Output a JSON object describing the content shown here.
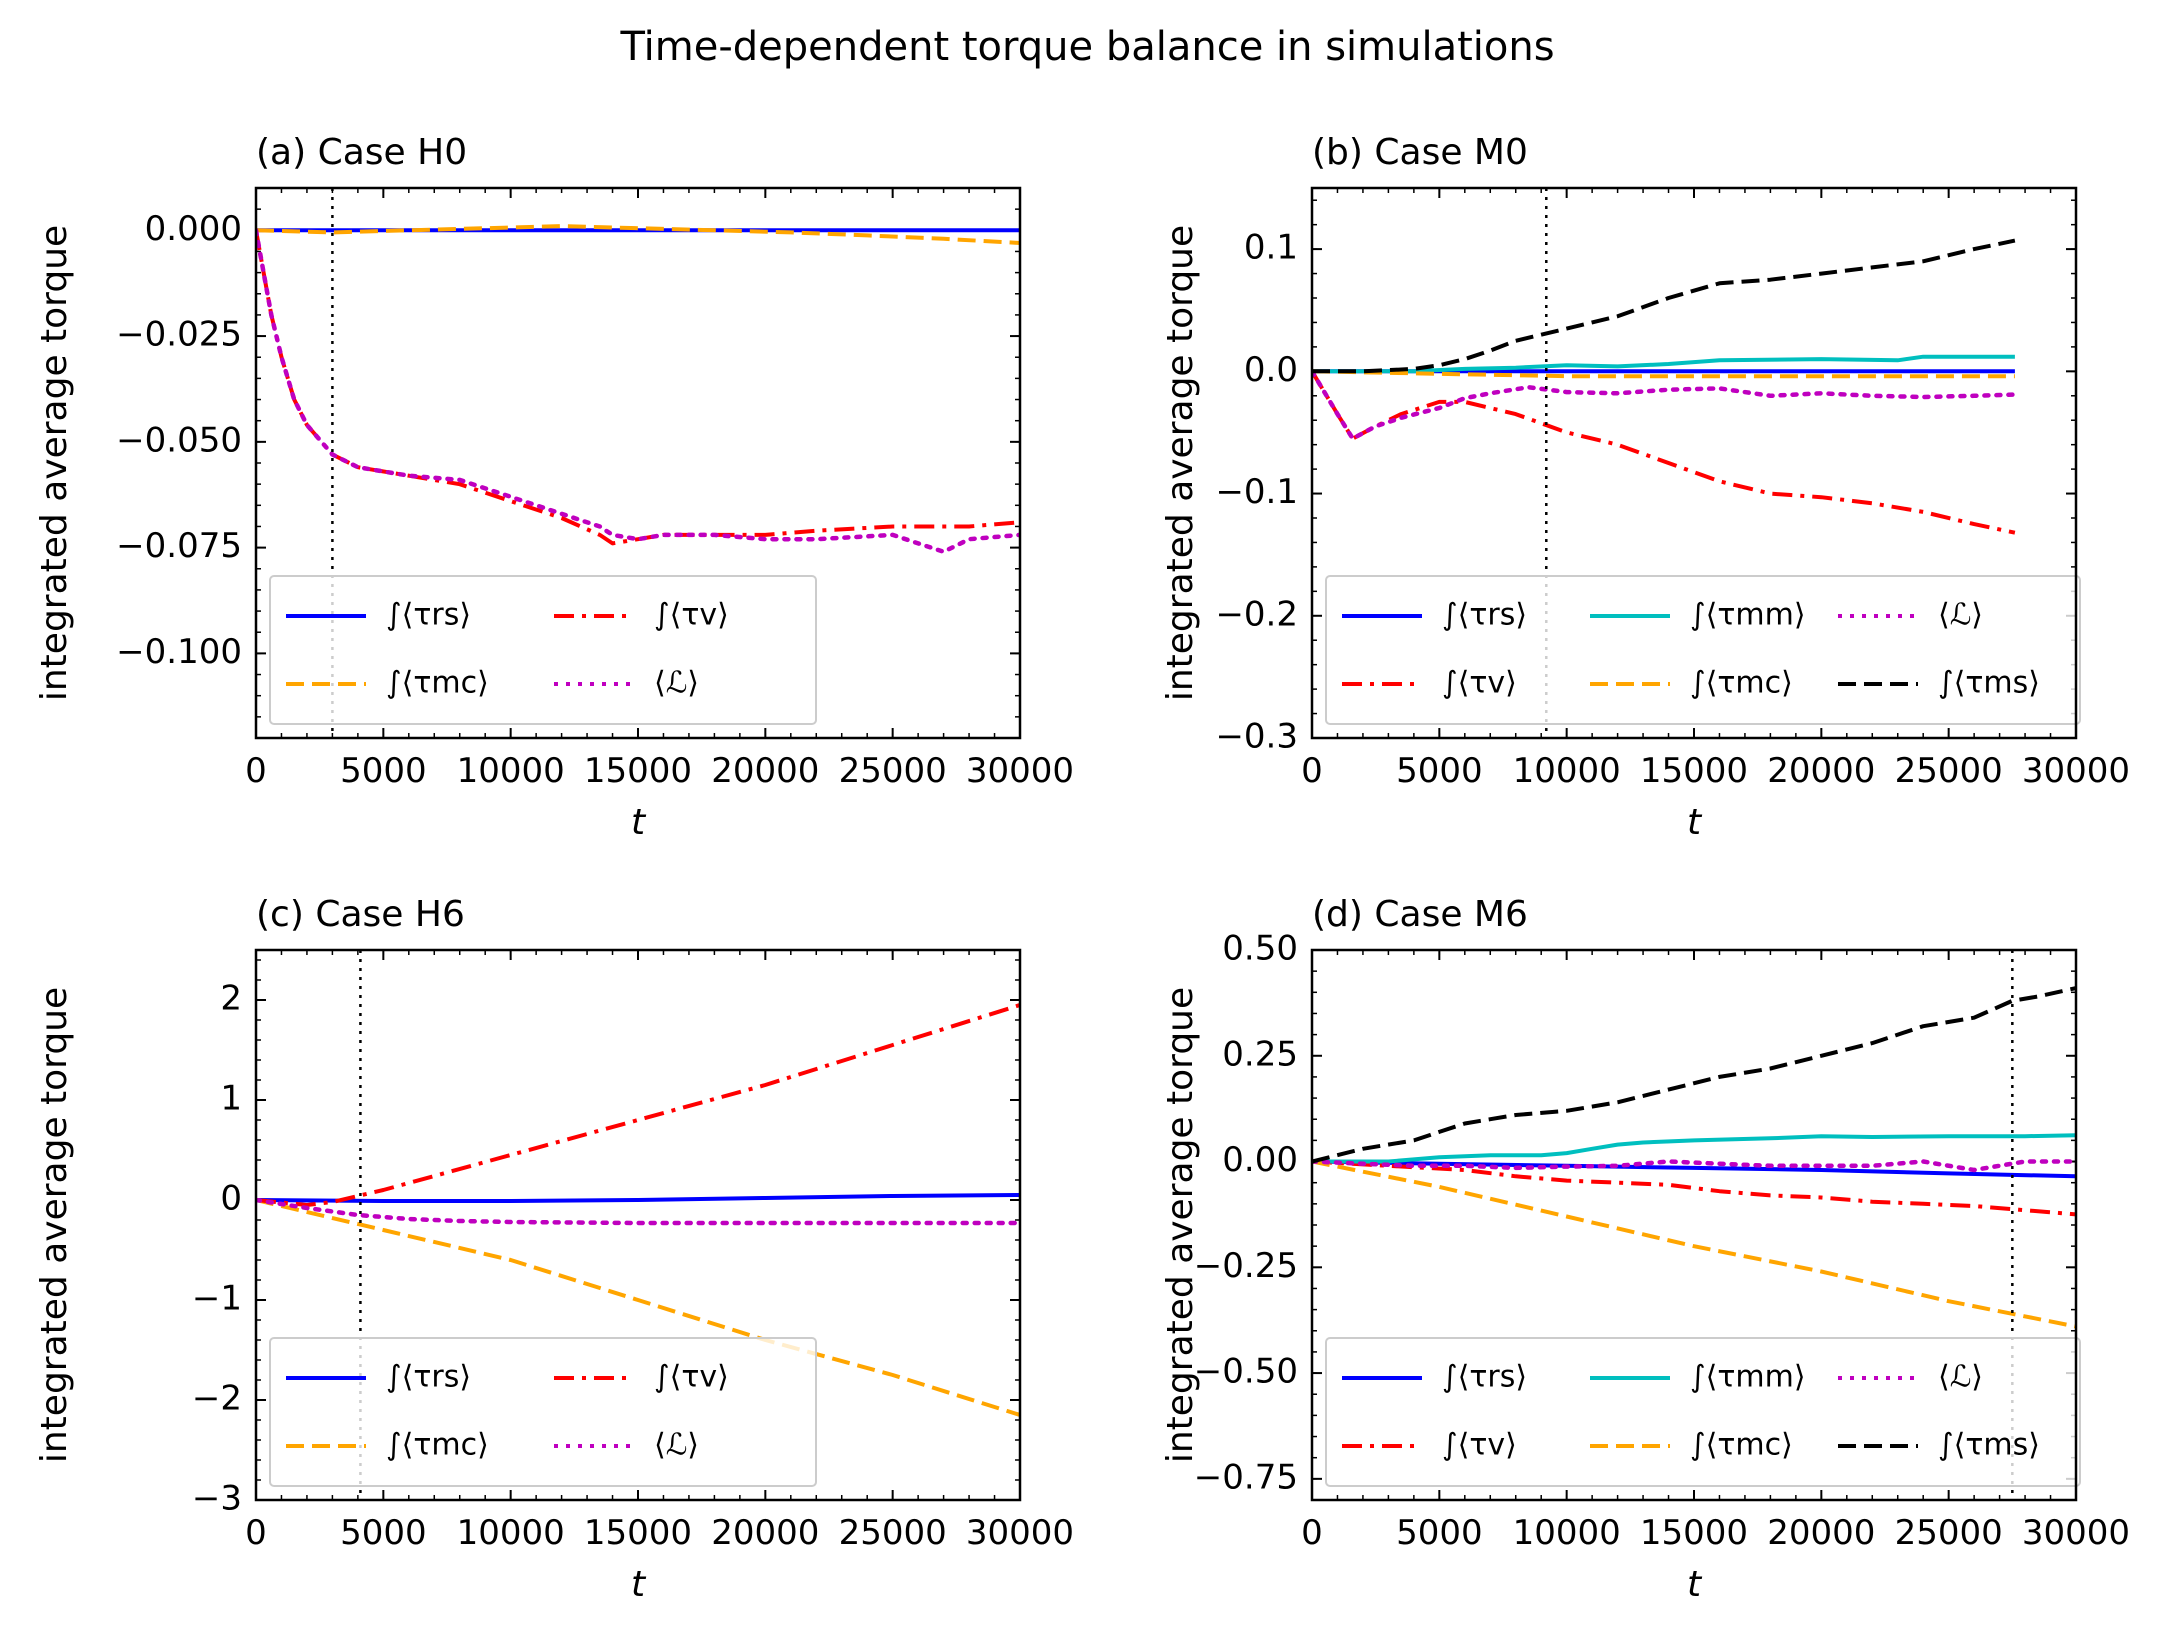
{
  "figure": {
    "title": "Time-dependent torque balance in simulations"
  },
  "chart_data": [
    {
      "type": "line",
      "title": "(a) Case H0",
      "xlabel": "t",
      "ylabel": "integrated average torque",
      "xlim": [
        0,
        30000
      ],
      "ylim": [
        -0.12,
        0.01
      ],
      "xticks": [
        "0",
        "5000",
        "10000",
        "15000",
        "20000",
        "25000",
        "30000"
      ],
      "yticks": [
        "0.000",
        "−0.025",
        "−0.050",
        "−0.075",
        "−0.100"
      ],
      "ytick_values": [
        0,
        -0.025,
        -0.05,
        -0.075,
        -0.1
      ],
      "vline": 3000,
      "legend": {
        "placement": "lower-left",
        "columns": 2
      },
      "series": [
        {
          "key": "rs",
          "name": "∫⟨τrs⟩",
          "color": "#0000ff",
          "style": "solid",
          "x": [
            0,
            5000,
            10000,
            15000,
            20000,
            25000,
            30000
          ],
          "y": [
            0,
            0,
            0,
            0,
            0,
            0,
            0
          ]
        },
        {
          "key": "mc",
          "name": "∫⟨τmc⟩",
          "color": "#ffa500",
          "style": "dashed",
          "x": [
            0,
            3000,
            6000,
            9000,
            12000,
            15000,
            18000,
            21000,
            24000,
            27000,
            30000
          ],
          "y": [
            0,
            -0.0005,
            0,
            0.0005,
            0.001,
            0.0005,
            0,
            -0.0005,
            -0.0012,
            -0.002,
            -0.003
          ]
        },
        {
          "key": "v",
          "name": "∫⟨τv⟩",
          "color": "#ff0000",
          "style": "dashdot",
          "x": [
            0,
            300,
            600,
            1000,
            1500,
            2000,
            3000,
            4000,
            6000,
            8000,
            10000,
            12000,
            13500,
            14000,
            15000,
            16000,
            18000,
            20000,
            22000,
            25000,
            28000,
            30000
          ],
          "y": [
            0,
            -0.01,
            -0.02,
            -0.03,
            -0.04,
            -0.046,
            -0.053,
            -0.056,
            -0.058,
            -0.06,
            -0.064,
            -0.068,
            -0.072,
            -0.074,
            -0.073,
            -0.072,
            -0.072,
            -0.072,
            -0.071,
            -0.07,
            -0.07,
            -0.069
          ]
        },
        {
          "key": "L",
          "name": "⟨ℒ⟩",
          "color": "#bf00bf",
          "style": "dotted",
          "x": [
            0,
            300,
            600,
            1000,
            1500,
            2000,
            3000,
            4000,
            6000,
            8000,
            10000,
            12000,
            13500,
            14000,
            15000,
            16000,
            18000,
            20000,
            22000,
            25000,
            27000,
            28000,
            30000
          ],
          "y": [
            0,
            -0.01,
            -0.02,
            -0.03,
            -0.04,
            -0.046,
            -0.053,
            -0.056,
            -0.058,
            -0.059,
            -0.063,
            -0.067,
            -0.07,
            -0.072,
            -0.073,
            -0.072,
            -0.072,
            -0.073,
            -0.073,
            -0.072,
            -0.076,
            -0.073,
            -0.072
          ]
        }
      ]
    },
    {
      "type": "line",
      "title": "(b) Case M0",
      "xlabel": "t",
      "ylabel": "integrated average torque",
      "xlim": [
        0,
        30000
      ],
      "ylim": [
        -0.3,
        0.15
      ],
      "xticks": [
        "0",
        "5000",
        "10000",
        "15000",
        "20000",
        "25000",
        "30000"
      ],
      "yticks": [
        "0.1",
        "0.0",
        "−0.1",
        "−0.2",
        "−0.3"
      ],
      "ytick_values": [
        0.1,
        0,
        -0.1,
        -0.2,
        -0.3
      ],
      "vline": 9200,
      "legend": {
        "placement": "lower-left",
        "columns": 3
      },
      "series": [
        {
          "key": "rs",
          "name": "∫⟨τrs⟩",
          "color": "#0000ff",
          "style": "solid",
          "x": [
            0,
            5000,
            10000,
            15000,
            20000,
            25000,
            27600
          ],
          "y": [
            0,
            0,
            0,
            0,
            0,
            0,
            0
          ]
        },
        {
          "key": "v",
          "name": "∫⟨τv⟩",
          "color": "#ff0000",
          "style": "dashdot",
          "x": [
            0,
            1000,
            1600,
            2500,
            3500,
            5000,
            6000,
            8000,
            10000,
            12000,
            14000,
            16000,
            18000,
            20000,
            22000,
            24000,
            26000,
            27600
          ],
          "y": [
            0,
            -0.035,
            -0.055,
            -0.045,
            -0.035,
            -0.025,
            -0.025,
            -0.035,
            -0.05,
            -0.06,
            -0.075,
            -0.09,
            -0.1,
            -0.103,
            -0.108,
            -0.115,
            -0.125,
            -0.132
          ]
        },
        {
          "key": "mm",
          "name": "∫⟨τmm⟩",
          "color": "#00bfbf",
          "style": "solid",
          "x": [
            0,
            4000,
            6000,
            8000,
            10000,
            12000,
            14000,
            16000,
            20000,
            23000,
            24000,
            27600
          ],
          "y": [
            0,
            0,
            0.002,
            0.003,
            0.005,
            0.004,
            0.006,
            0.009,
            0.01,
            0.009,
            0.012,
            0.012
          ]
        },
        {
          "key": "mc",
          "name": "∫⟨τmc⟩",
          "color": "#ffa500",
          "style": "dashed",
          "x": [
            0,
            5000,
            10000,
            15000,
            20000,
            25000,
            27600
          ],
          "y": [
            0,
            -0.002,
            -0.004,
            -0.004,
            -0.004,
            -0.004,
            -0.004
          ]
        },
        {
          "key": "L",
          "name": "⟨ℒ⟩",
          "color": "#bf00bf",
          "style": "dotted",
          "x": [
            0,
            1000,
            1600,
            2500,
            3500,
            5000,
            6000,
            7000,
            8500,
            10000,
            12000,
            14000,
            16000,
            18000,
            20000,
            22000,
            24000,
            26000,
            27600
          ],
          "y": [
            0,
            -0.035,
            -0.055,
            -0.045,
            -0.038,
            -0.03,
            -0.022,
            -0.018,
            -0.013,
            -0.017,
            -0.018,
            -0.015,
            -0.014,
            -0.02,
            -0.018,
            -0.02,
            -0.021,
            -0.02,
            -0.019
          ]
        },
        {
          "key": "ms",
          "name": "∫⟨τms⟩",
          "color": "#000000",
          "style": "dashed",
          "x": [
            0,
            2000,
            4000,
            5000,
            6000,
            7000,
            8000,
            9000,
            10000,
            12000,
            14000,
            16000,
            18000,
            20000,
            22000,
            24000,
            26000,
            27600
          ],
          "y": [
            0,
            0,
            0.002,
            0.005,
            0.01,
            0.017,
            0.025,
            0.03,
            0.035,
            0.045,
            0.06,
            0.072,
            0.075,
            0.08,
            0.085,
            0.09,
            0.1,
            0.107
          ]
        }
      ]
    },
    {
      "type": "line",
      "title": "(c) Case H6",
      "xlabel": "t",
      "ylabel": "integrated average torque",
      "xlim": [
        0,
        30000
      ],
      "ylim": [
        -3,
        2.5
      ],
      "xticks": [
        "0",
        "5000",
        "10000",
        "15000",
        "20000",
        "25000",
        "30000"
      ],
      "yticks": [
        "2",
        "1",
        "0",
        "−1",
        "−2",
        "−3"
      ],
      "ytick_values": [
        2,
        1,
        0,
        -1,
        -2,
        -3
      ],
      "vline": 4100,
      "legend": {
        "placement": "lower-left",
        "columns": 2
      },
      "series": [
        {
          "key": "rs",
          "name": "∫⟨τrs⟩",
          "color": "#0000ff",
          "style": "solid",
          "x": [
            0,
            5000,
            10000,
            15000,
            20000,
            25000,
            30000
          ],
          "y": [
            0,
            -0.01,
            -0.01,
            0,
            0.02,
            0.04,
            0.05
          ]
        },
        {
          "key": "mc",
          "name": "∫⟨τmc⟩",
          "color": "#ffa500",
          "style": "dashed",
          "x": [
            0,
            5000,
            10000,
            15000,
            20000,
            25000,
            30000
          ],
          "y": [
            0,
            -0.3,
            -0.6,
            -1.0,
            -1.4,
            -1.75,
            -2.15
          ]
        },
        {
          "key": "v",
          "name": "∫⟨τv⟩",
          "color": "#ff0000",
          "style": "dashdot",
          "x": [
            0,
            2000,
            3000,
            5000,
            10000,
            15000,
            20000,
            25000,
            30000
          ],
          "y": [
            0,
            -0.05,
            -0.02,
            0.1,
            0.45,
            0.8,
            1.15,
            1.55,
            1.95
          ]
        },
        {
          "key": "L",
          "name": "⟨ℒ⟩",
          "color": "#bf00bf",
          "style": "dotted",
          "x": [
            0,
            2000,
            4000,
            6000,
            8000,
            10000,
            15000,
            20000,
            25000,
            30000
          ],
          "y": [
            0,
            -0.08,
            -0.15,
            -0.19,
            -0.21,
            -0.22,
            -0.23,
            -0.23,
            -0.23,
            -0.23
          ]
        }
      ]
    },
    {
      "type": "line",
      "title": "(d) Case M6",
      "xlabel": "t",
      "ylabel": "integrated average torque",
      "xlim": [
        0,
        30000
      ],
      "ylim": [
        -0.8,
        0.5
      ],
      "xticks": [
        "0",
        "5000",
        "10000",
        "15000",
        "20000",
        "25000",
        "30000"
      ],
      "yticks": [
        "0.50",
        "0.25",
        "0.00",
        "−0.25",
        "−0.50",
        "−0.75"
      ],
      "ytick_values": [
        0.5,
        0.25,
        0,
        -0.25,
        -0.5,
        -0.75
      ],
      "vline": 27500,
      "legend": {
        "placement": "lower-left",
        "columns": 3
      },
      "series": [
        {
          "key": "rs",
          "name": "∫⟨τrs⟩",
          "color": "#0000ff",
          "style": "solid",
          "x": [
            0,
            5000,
            10000,
            15000,
            20000,
            25000,
            30000
          ],
          "y": [
            0,
            -0.005,
            -0.01,
            -0.015,
            -0.02,
            -0.028,
            -0.035
          ]
        },
        {
          "key": "v",
          "name": "∫⟨τv⟩",
          "color": "#ff0000",
          "style": "dashdot",
          "x": [
            0,
            3000,
            6000,
            8000,
            10000,
            12000,
            14000,
            16000,
            18000,
            20000,
            22000,
            24000,
            26000,
            28000,
            30000
          ],
          "y": [
            0,
            -0.01,
            -0.02,
            -0.035,
            -0.045,
            -0.05,
            -0.055,
            -0.07,
            -0.08,
            -0.085,
            -0.095,
            -0.1,
            -0.105,
            -0.115,
            -0.125
          ]
        },
        {
          "key": "mm",
          "name": "∫⟨τmm⟩",
          "color": "#00bfbf",
          "style": "solid",
          "x": [
            0,
            3000,
            5000,
            7000,
            9000,
            10000,
            11000,
            12000,
            13000,
            15000,
            18000,
            20000,
            22000,
            25000,
            28000,
            30000
          ],
          "y": [
            0,
            0,
            0.01,
            0.015,
            0.015,
            0.02,
            0.03,
            0.04,
            0.045,
            0.05,
            0.055,
            0.06,
            0.058,
            0.06,
            0.06,
            0.062
          ]
        },
        {
          "key": "mc",
          "name": "∫⟨τmc⟩",
          "color": "#ffa500",
          "style": "dashed",
          "x": [
            0,
            5000,
            10000,
            15000,
            20000,
            25000,
            30000
          ],
          "y": [
            0,
            -0.06,
            -0.13,
            -0.2,
            -0.26,
            -0.33,
            -0.39
          ]
        },
        {
          "key": "L",
          "name": "⟨ℒ⟩",
          "color": "#bf00bf",
          "style": "dotted",
          "x": [
            0,
            2000,
            4000,
            6000,
            8000,
            10000,
            12000,
            14000,
            16000,
            18000,
            20000,
            22000,
            24000,
            26000,
            28000,
            30000
          ],
          "y": [
            0,
            -0.005,
            -0.01,
            -0.01,
            -0.015,
            -0.012,
            -0.01,
            0,
            -0.005,
            -0.01,
            -0.01,
            -0.01,
            0,
            -0.02,
            0,
            0
          ]
        },
        {
          "key": "ms",
          "name": "∫⟨τms⟩",
          "color": "#000000",
          "style": "dashed",
          "x": [
            0,
            2000,
            4000,
            5000,
            6000,
            7000,
            8000,
            10000,
            12000,
            14000,
            16000,
            18000,
            20000,
            22000,
            24000,
            26000,
            27500,
            28500,
            30000
          ],
          "y": [
            0,
            0.03,
            0.05,
            0.07,
            0.09,
            0.1,
            0.11,
            0.12,
            0.14,
            0.17,
            0.2,
            0.22,
            0.25,
            0.28,
            0.32,
            0.34,
            0.38,
            0.39,
            0.41
          ]
        }
      ]
    }
  ]
}
